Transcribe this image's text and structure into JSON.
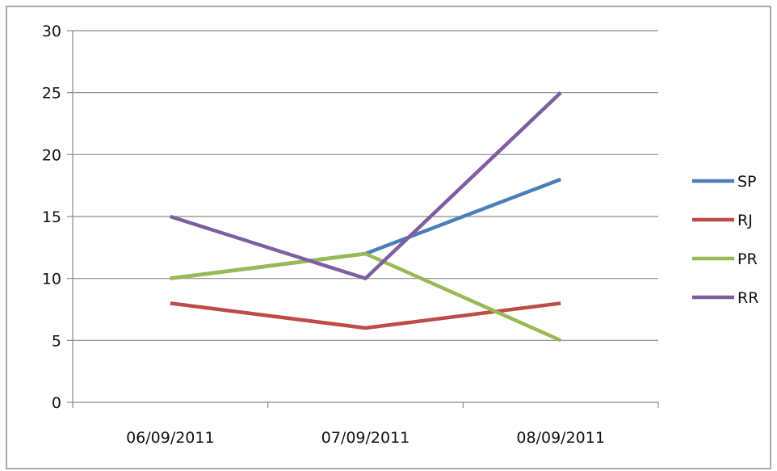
{
  "chart_data": {
    "type": "line",
    "title": "",
    "xlabel": "",
    "ylabel": "",
    "categories": [
      "06/09/2011",
      "07/09/2011",
      "08/09/2011"
    ],
    "ylim": [
      0,
      30
    ],
    "y_ticks": [
      0,
      5,
      10,
      15,
      20,
      25,
      30
    ],
    "grid": "horizontal",
    "legend": "right",
    "series": [
      {
        "name": "SP",
        "color": "#4a7ebb",
        "values": [
          10,
          12,
          18
        ]
      },
      {
        "name": "RJ",
        "color": "#be4b48",
        "values": [
          8,
          6,
          8
        ]
      },
      {
        "name": "PR",
        "color": "#98b954",
        "values": [
          10,
          12,
          5
        ]
      },
      {
        "name": "RR",
        "color": "#7d5fa0",
        "values": [
          15,
          10,
          25
        ]
      }
    ]
  }
}
